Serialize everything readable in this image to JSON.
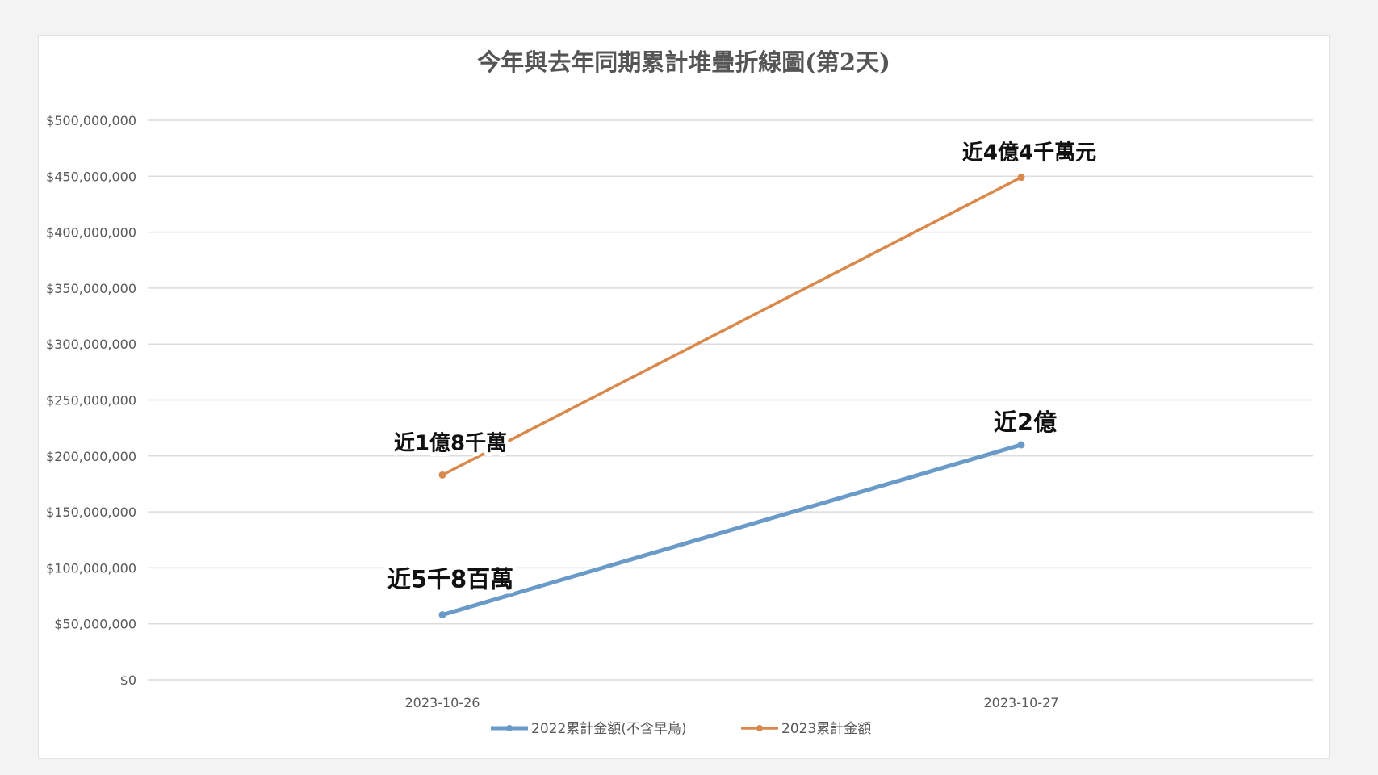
{
  "chart_data": {
    "type": "line",
    "title": "今年與去年同期累計堆疊折線圖(第2天)",
    "categories": [
      "2023-10-26",
      "2023-10-27"
    ],
    "ylim": [
      0,
      500000000
    ],
    "y_ticks": [
      0,
      50000000,
      100000000,
      150000000,
      200000000,
      250000000,
      300000000,
      350000000,
      400000000,
      450000000,
      500000000
    ],
    "y_tick_labels": [
      "$0",
      "$50,000,000",
      "$100,000,000",
      "$150,000,000",
      "$200,000,000",
      "$250,000,000",
      "$300,000,000",
      "$350,000,000",
      "$400,000,000",
      "$450,000,000",
      "$500,000,000"
    ],
    "grid": true,
    "legend_position": "bottom",
    "series": [
      {
        "name": "2022累計金額(不含早鳥)",
        "color": "#6a9ac7",
        "values": [
          58000000,
          210000000
        ],
        "annotations": [
          "近5千8百萬",
          "近2億"
        ]
      },
      {
        "name": "2023累計金額",
        "color": "#d9894b",
        "values": [
          183000000,
          449000000
        ],
        "annotations": [
          "近1億8千萬",
          "近4億4千萬元"
        ]
      }
    ]
  }
}
